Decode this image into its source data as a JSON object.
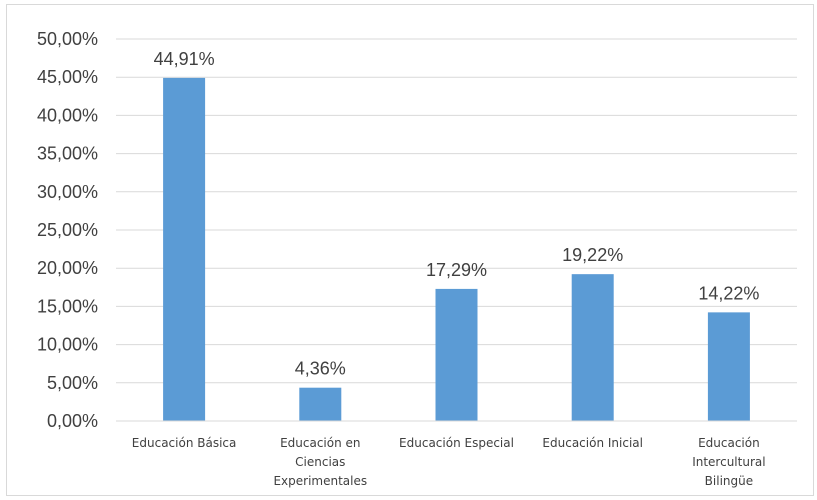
{
  "chart_data": {
    "type": "bar",
    "categories": [
      [
        "Educación Básica"
      ],
      [
        "Educación en",
        "Ciencias",
        "Experimentales"
      ],
      [
        "Educación Especial"
      ],
      [
        "Educación Inicial"
      ],
      [
        "Educación",
        "Intercultural",
        "Bilingüe"
      ]
    ],
    "values": [
      44.91,
      4.36,
      17.29,
      19.22,
      14.22
    ],
    "data_labels": [
      "44,91%",
      "4,36%",
      "17,29%",
      "19,22%",
      "14,22%"
    ],
    "y_tick_labels": [
      "0,00%",
      "5,00%",
      "10,00%",
      "15,00%",
      "20,00%",
      "25,00%",
      "30,00%",
      "35,00%",
      "40,00%",
      "45,00%",
      "50,00%"
    ],
    "ylim": [
      0,
      50
    ],
    "y_tick_step": 5,
    "grid": true,
    "legend": "none",
    "bar_color": "#5b9bd5",
    "grid_color": "#d9d9d9",
    "title": "",
    "xlabel": "",
    "ylabel": ""
  }
}
